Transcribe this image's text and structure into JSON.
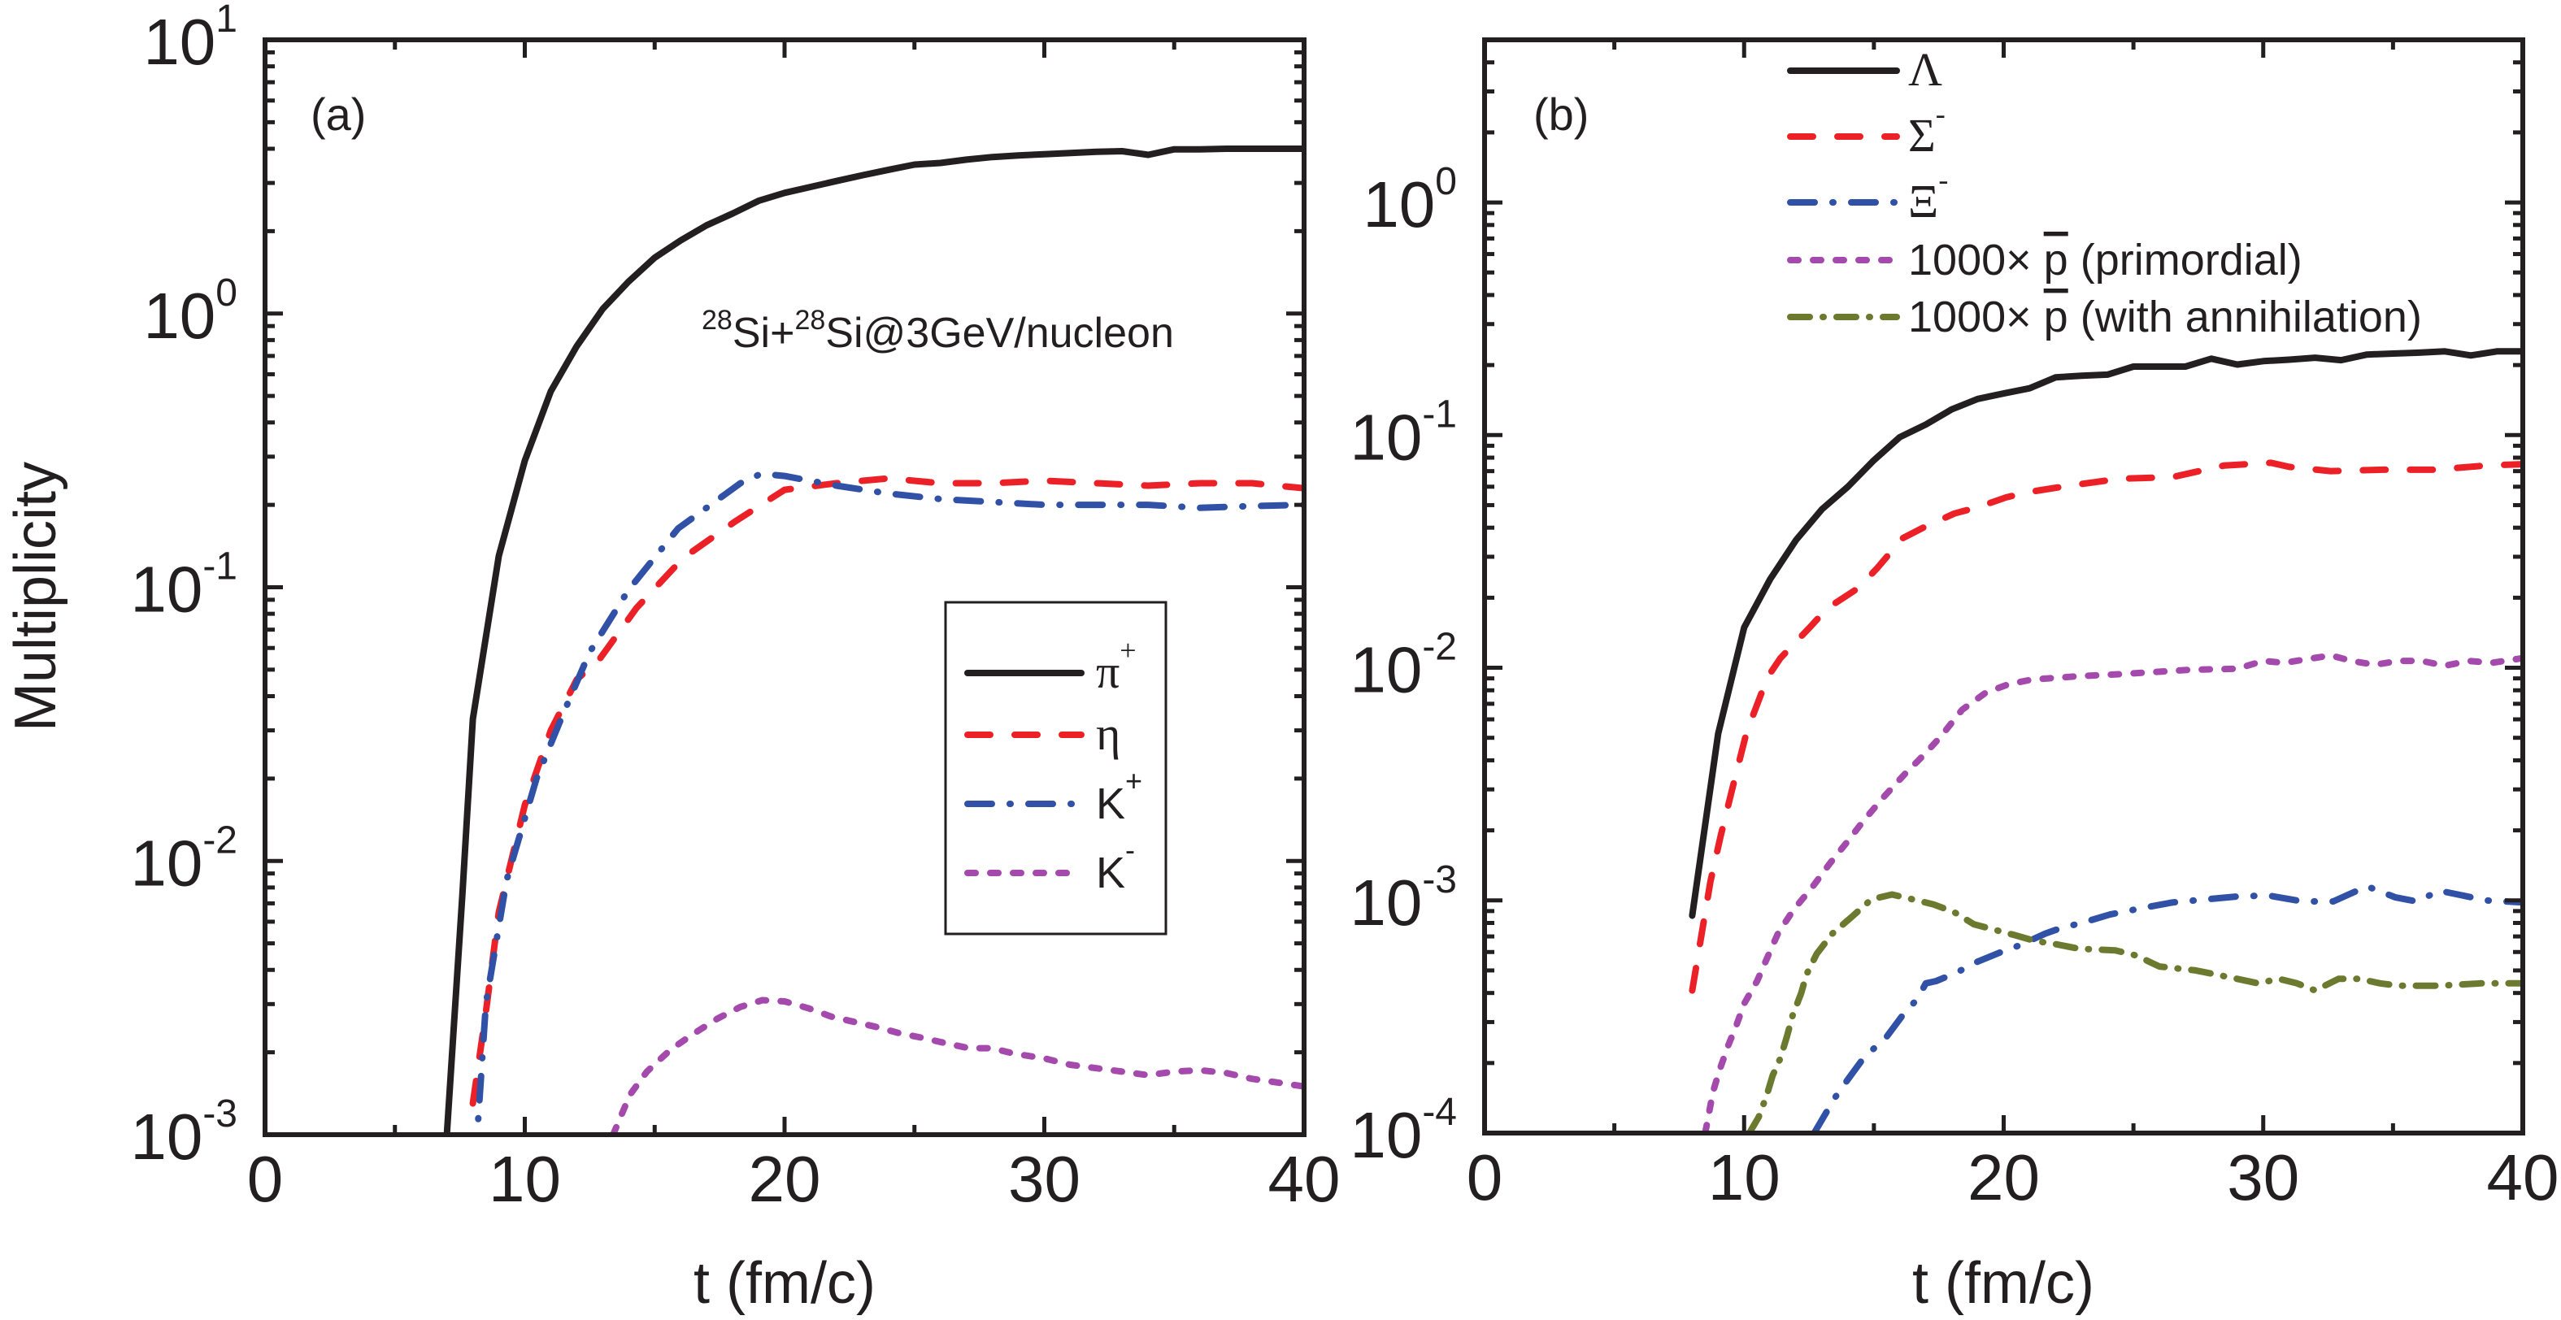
{
  "figure": {
    "ylabel": "Multiplicity",
    "xlabel": "t (fm/c)"
  },
  "chart_data": [
    {
      "type": "line",
      "panel": "(a)",
      "title": "",
      "annotation": {
        "pre_sup": "28",
        "part1": "Si+",
        "mid_sup": "28",
        "part2": "Si@3GeV/nucleon"
      },
      "xlabel": "t (fm/c)",
      "ylabel": "Multiplicity",
      "xlim": [
        0,
        40
      ],
      "ylim": [
        0.001,
        10
      ],
      "yscale": "log",
      "xticks": [
        0,
        10,
        20,
        30,
        40
      ],
      "xtick_labels": [
        "0",
        "10",
        "20",
        "30",
        "40"
      ],
      "yticks": [
        {
          "value": 10,
          "base": "10",
          "exp": "1"
        },
        {
          "value": 1,
          "base": "10",
          "exp": "0"
        },
        {
          "value": 0.1,
          "base": "10",
          "exp": "-1"
        },
        {
          "value": 0.01,
          "base": "10",
          "exp": "-2"
        },
        {
          "value": 0.001,
          "base": "10",
          "exp": "-3"
        }
      ],
      "legend_position": "center-right",
      "series": [
        {
          "name": "π+",
          "label": "π",
          "sup": "+",
          "greek": true,
          "color": "#231f20",
          "style": "solid",
          "x": [
            7,
            7.6,
            8,
            9,
            10,
            11,
            12,
            13,
            14,
            15,
            16,
            17,
            18,
            19,
            20,
            21,
            22,
            23,
            24,
            25,
            26,
            27,
            28,
            29,
            30,
            31,
            32,
            33,
            34,
            35,
            36,
            37,
            38,
            39,
            40
          ],
          "y": [
            0.001,
            0.0076,
            0.033,
            0.13,
            0.29,
            0.52,
            0.76,
            1.04,
            1.31,
            1.6,
            1.85,
            2.1,
            2.32,
            2.58,
            2.76,
            2.9,
            3.05,
            3.2,
            3.35,
            3.5,
            3.55,
            3.65,
            3.73,
            3.78,
            3.82,
            3.86,
            3.9,
            3.92,
            3.8,
            3.98,
            3.98,
            4.0,
            4.0,
            4.0,
            4.0
          ]
        },
        {
          "name": "η",
          "label": "η",
          "sup": "",
          "greek": true,
          "color": "#ec2127",
          "style": "dash",
          "x": [
            8,
            8.5,
            9,
            10,
            11,
            12,
            12.9,
            14.3,
            16.1,
            18.1,
            20,
            22,
            24,
            26,
            28,
            30,
            32,
            34,
            36,
            38,
            40
          ],
          "y": [
            0.0013,
            0.0028,
            0.0065,
            0.016,
            0.03,
            0.046,
            0.055,
            0.084,
            0.128,
            0.174,
            0.227,
            0.24,
            0.25,
            0.24,
            0.24,
            0.245,
            0.24,
            0.235,
            0.24,
            0.24,
            0.23
          ]
        },
        {
          "name": "K+",
          "label": "K",
          "sup": "+",
          "greek": false,
          "color": "#3151a6",
          "style": "dashdot",
          "x": [
            8.1,
            8.5,
            9.3,
            10.45,
            11.45,
            12.5,
            14,
            15.9,
            18.3,
            19.1,
            20,
            22,
            24,
            26,
            28,
            30,
            32,
            34,
            36,
            38,
            40
          ],
          "y": [
            0.0008,
            0.003,
            0.0085,
            0.02,
            0.034,
            0.058,
            0.098,
            0.164,
            0.24,
            0.26,
            0.255,
            0.235,
            0.22,
            0.21,
            0.205,
            0.2,
            0.2,
            0.2,
            0.195,
            0.198,
            0.2
          ]
        },
        {
          "name": "K-",
          "label": "K",
          "sup": "-",
          "greek": false,
          "color": "#a54aad",
          "style": "dot",
          "x": [
            13.4,
            14.05,
            14.7,
            15.6,
            16.5,
            17.4,
            18.3,
            19.15,
            20,
            20.9,
            21.8,
            22.7,
            23.5,
            24.4,
            25.3,
            26.2,
            27.1,
            28,
            28.8,
            30,
            31,
            32,
            33,
            34,
            35,
            36,
            37,
            38,
            39,
            40
          ],
          "y": [
            0.001,
            0.0014,
            0.0017,
            0.00204,
            0.00234,
            0.00265,
            0.00293,
            0.0031,
            0.00307,
            0.0029,
            0.0027,
            0.00258,
            0.00248,
            0.00235,
            0.00226,
            0.00216,
            0.00207,
            0.00207,
            0.00198,
            0.0019,
            0.0018,
            0.00175,
            0.0017,
            0.00165,
            0.0017,
            0.00172,
            0.00168,
            0.0016,
            0.00155,
            0.0015
          ]
        }
      ]
    },
    {
      "type": "line",
      "panel": "(b)",
      "title": "",
      "xlabel": "t (fm/c)",
      "ylabel": "",
      "xlim": [
        0,
        40
      ],
      "ylim": [
        0.0001,
        5
      ],
      "yscale": "log",
      "xticks": [
        0,
        10,
        20,
        30,
        40
      ],
      "xtick_labels": [
        "0",
        "10",
        "20",
        "30",
        "40"
      ],
      "yticks": [
        {
          "value": 1,
          "base": "10",
          "exp": "0"
        },
        {
          "value": 0.1,
          "base": "10",
          "exp": "-1"
        },
        {
          "value": 0.01,
          "base": "10",
          "exp": "-2"
        },
        {
          "value": 0.001,
          "base": "10",
          "exp": "-3"
        },
        {
          "value": 0.0001,
          "base": "10",
          "exp": "-4"
        }
      ],
      "legend_position": "top-center",
      "series": [
        {
          "name": "Λ",
          "label": "Λ",
          "sup": "",
          "greek": true,
          "color": "#231f20",
          "style": "solid",
          "x": [
            8,
            9,
            10,
            11,
            12,
            13,
            14,
            15,
            16,
            17,
            18,
            19,
            20,
            21,
            22,
            23,
            24,
            25,
            26,
            27,
            28,
            29,
            30,
            31,
            32,
            33,
            34,
            35,
            36,
            37,
            38,
            39,
            40
          ],
          "y": [
            0.00086,
            0.0052,
            0.0149,
            0.024,
            0.0354,
            0.048,
            0.06,
            0.078,
            0.098,
            0.111,
            0.129,
            0.143,
            0.151,
            0.159,
            0.177,
            0.18,
            0.182,
            0.197,
            0.197,
            0.197,
            0.213,
            0.201,
            0.208,
            0.211,
            0.215,
            0.21,
            0.222,
            0.224,
            0.226,
            0.229,
            0.22,
            0.229,
            0.229
          ]
        },
        {
          "name": "Σ-",
          "label": "Σ",
          "sup": "-",
          "greek": true,
          "color": "#ec2127",
          "style": "dash",
          "x": [
            8,
            8.4,
            8.7,
            9.1,
            9.6,
            10.1,
            10.9,
            11.4,
            12.55,
            13.2,
            14.4,
            15.15,
            16.1,
            16.9,
            18.1,
            19,
            20.1,
            21,
            22.5,
            24.5,
            26.5,
            28.5,
            30.3,
            31,
            32.6,
            34.6,
            36.6,
            38.6,
            40
          ],
          "y": [
            0.00041,
            0.00076,
            0.0012,
            0.0019,
            0.0032,
            0.0053,
            0.0091,
            0.011,
            0.015,
            0.018,
            0.022,
            0.027,
            0.036,
            0.04,
            0.046,
            0.049,
            0.054,
            0.057,
            0.0606,
            0.065,
            0.066,
            0.074,
            0.076,
            0.073,
            0.07,
            0.071,
            0.071,
            0.074,
            0.075
          ]
        },
        {
          "name": "Ξ-",
          "label": "Ξ",
          "sup": "-",
          "greek": true,
          "color": "#3151a6",
          "style": "dashdot",
          "x": [
            12.7,
            13.5,
            14,
            14.6,
            15.5,
            16.1,
            16.7,
            17,
            17.4,
            18.2,
            18.9,
            19.9,
            20.6,
            21.6,
            22.2,
            23,
            24.1,
            25.4,
            26.5,
            27.8,
            29,
            30.2,
            31.5,
            32.7,
            34,
            35.1,
            35.9,
            36.8,
            37.5,
            38.6,
            40
          ],
          "y": [
            0.0001,
            0.000142,
            0.00017,
            0.00021,
            0.00026,
            0.00032,
            0.00038,
            0.00044,
            0.00045,
            0.00049,
            0.00054,
            0.0006,
            0.00064,
            0.00072,
            0.00076,
            0.0008,
            0.00087,
            0.00093,
            0.00098,
            0.00101,
            0.00104,
            0.00105,
            0.00099,
            0.00099,
            0.00115,
            0.00103,
            0.00099,
            0.0011,
            0.00106,
            0.001,
            0.00098
          ]
        },
        {
          "name": "1000× p̄ (primordial)",
          "label": "1000× p (primordial)",
          "prefix": "1000×",
          "pbar": "p",
          "suffix": "(primordial)",
          "sup": "",
          "greek": false,
          "color": "#a54aad",
          "style": "dot",
          "x": [
            8.5,
            8.8,
            9.05,
            9.4,
            9.7,
            10,
            10.5,
            10.9,
            11.3,
            11.9,
            12.65,
            13.3,
            14,
            14.6,
            15.4,
            16.2,
            17,
            17.6,
            18.4,
            19.3,
            20.2,
            21.1,
            22.9,
            24.6,
            27.2,
            29,
            30,
            30.8,
            32.6,
            33.4,
            34.3,
            35.2,
            36.1,
            37,
            37.9,
            38.8,
            40
          ],
          "y": [
            0.0001,
            0.00015,
            0.000186,
            0.00024,
            0.00029,
            0.00036,
            0.00045,
            0.00057,
            0.00072,
            0.00091,
            0.00115,
            0.00144,
            0.0018,
            0.0022,
            0.0028,
            0.0035,
            0.0043,
            0.0051,
            0.0066,
            0.0078,
            0.0085,
            0.0089,
            0.0092,
            0.0094,
            0.0098,
            0.0099,
            0.0107,
            0.0105,
            0.0113,
            0.0107,
            0.0103,
            0.0107,
            0.0107,
            0.0102,
            0.0107,
            0.0105,
            0.011
          ]
        },
        {
          "name": "1000× p̄ (with annihilation)",
          "label": "1000× p (with annihilation)",
          "prefix": "1000×",
          "pbar": "p",
          "suffix": "(with annihilation)",
          "sup": "",
          "greek": false,
          "color": "#6b7a2f",
          "style": "dashdotdot",
          "x": [
            10.2,
            10.56,
            10.87,
            11.1,
            11.4,
            11.65,
            11.87,
            12.2,
            12.4,
            12.8,
            13.4,
            14.15,
            14.9,
            15.7,
            16.5,
            17.3,
            18.1,
            18.85,
            19.6,
            20.4,
            21.2,
            21.95,
            22.9,
            24.3,
            25.1,
            26,
            27.4,
            29,
            29.8,
            30.6,
            31.3,
            32,
            32.9,
            33.7,
            34.5,
            35.2,
            36.8,
            38.4,
            40
          ],
          "y": [
            0.0001,
            0.000117,
            0.000145,
            0.000177,
            0.00021,
            0.00026,
            0.00032,
            0.0004,
            0.00048,
            0.00059,
            0.00072,
            0.00085,
            0.00101,
            0.00106,
            0.00101,
            0.00096,
            0.00089,
            0.00079,
            0.00075,
            0.00071,
            0.00067,
            0.00065,
            0.00062,
            0.00061,
            0.00058,
            0.00052,
            0.0005,
            0.00046,
            0.00044,
            0.00046,
            0.00044,
            0.00041,
            0.00046,
            0.00046,
            0.00044,
            0.00043,
            0.00043,
            0.00044,
            0.00044
          ]
        }
      ]
    }
  ]
}
